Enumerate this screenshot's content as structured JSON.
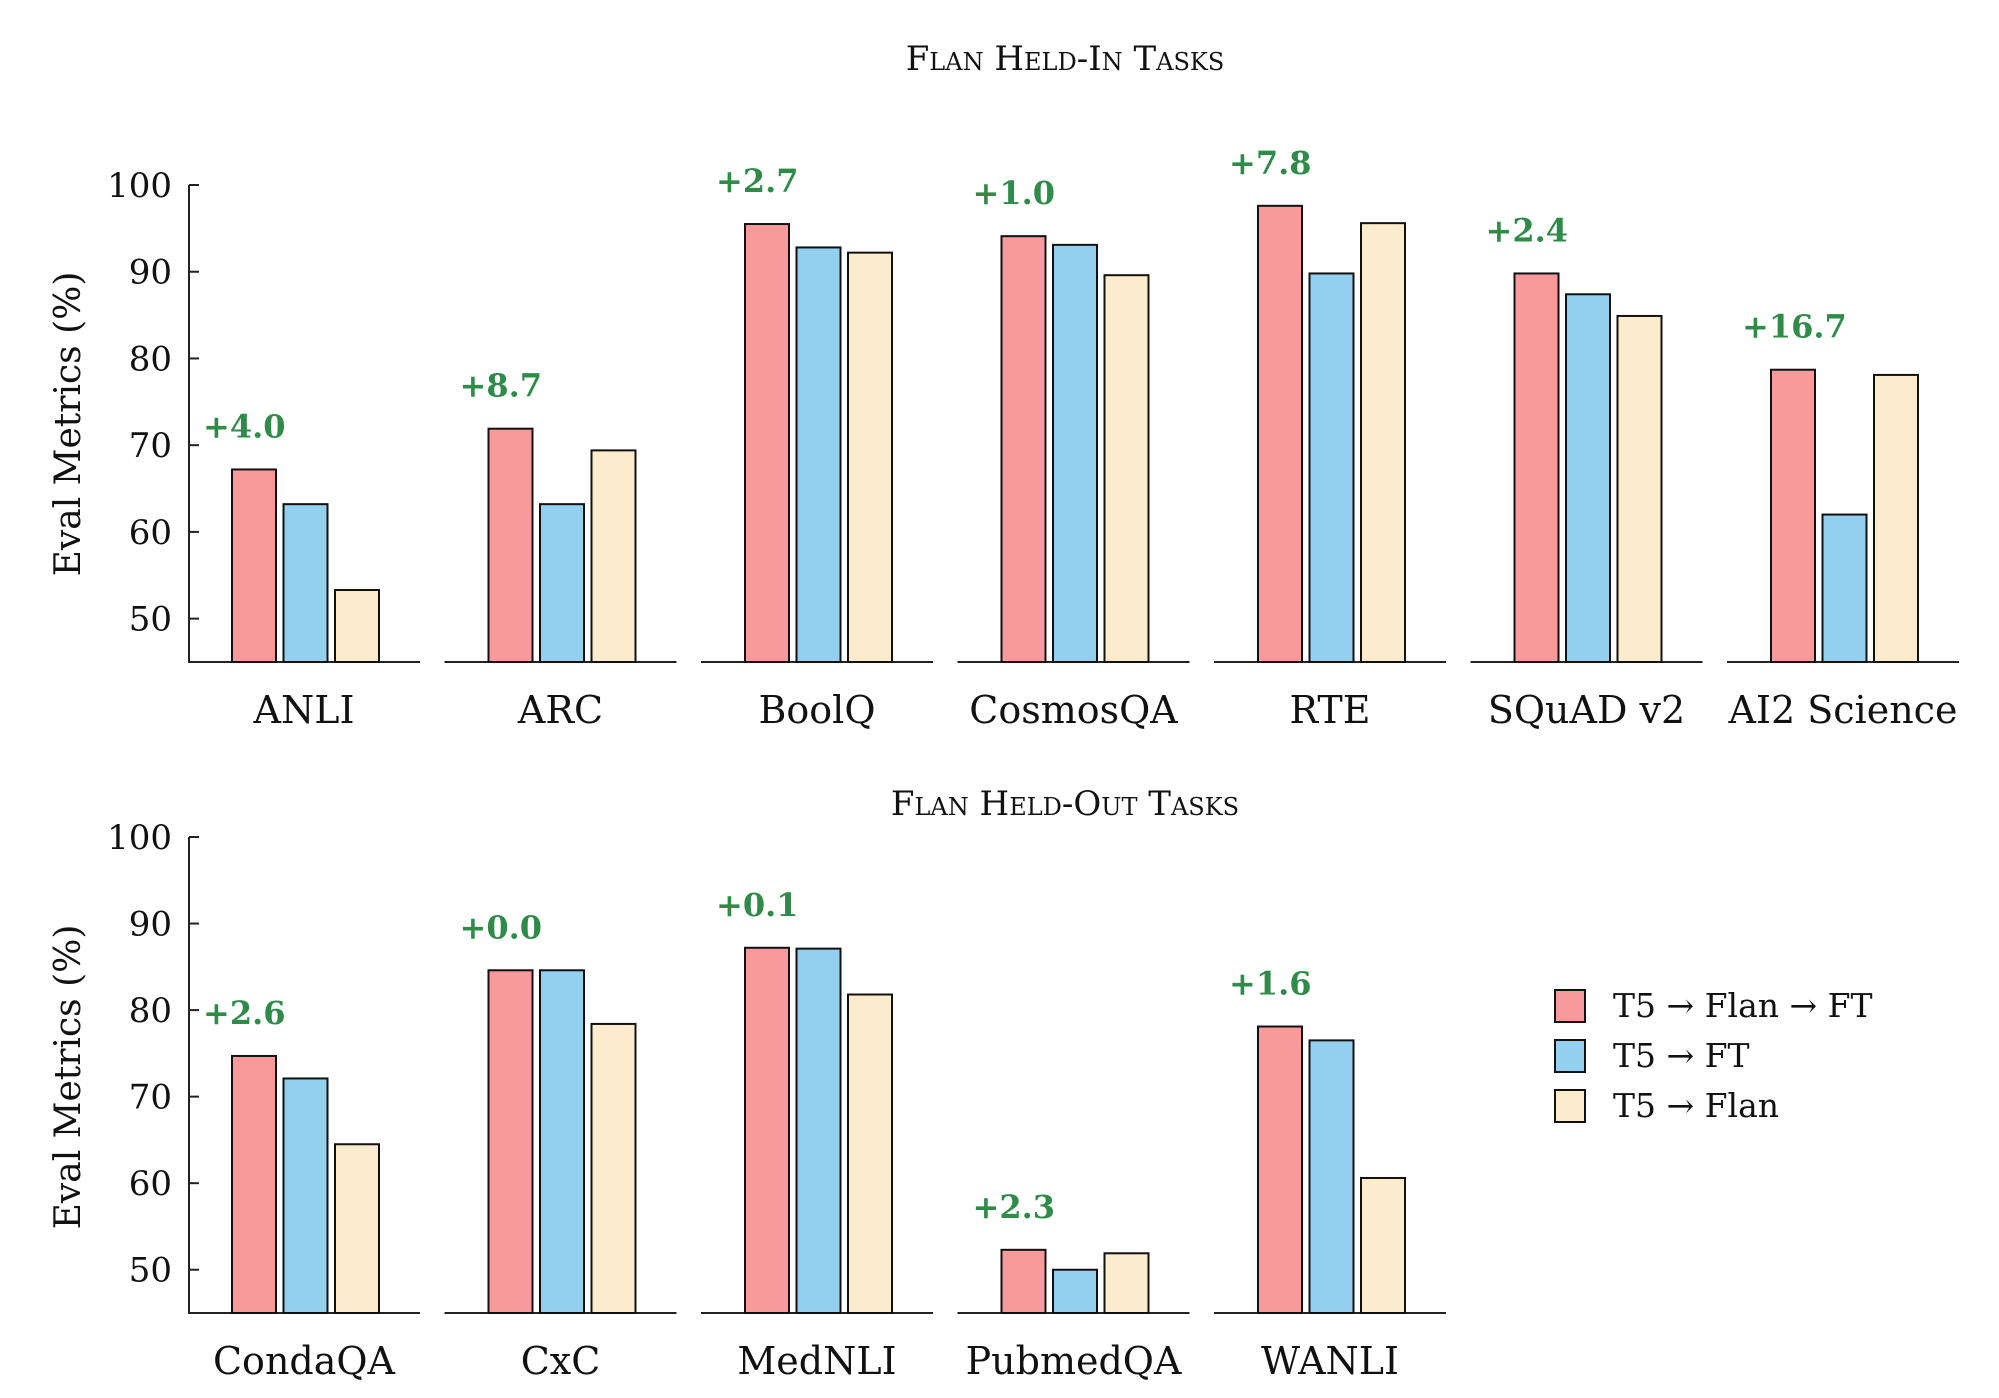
{
  "colors": {
    "flan_ft": "#f89a9c",
    "ft": "#93cfee",
    "flan": "#fcebcd",
    "delta": "#2e8b48"
  },
  "legend": [
    {
      "label": "T5 → Flan → FT",
      "color_key": "flan_ft"
    },
    {
      "label": "T5 → FT",
      "color_key": "ft"
    },
    {
      "label": "T5 → Flan",
      "color_key": "flan"
    }
  ],
  "chart_data": [
    {
      "type": "bar",
      "title": "Flan Held-In Tasks",
      "ylabel": "Eval Metrics (%)",
      "ylim": [
        45,
        100
      ],
      "yticks": [
        50,
        60,
        70,
        80,
        90,
        100
      ],
      "categories": [
        "ANLI",
        "ARC",
        "BoolQ",
        "CosmosQA",
        "RTE",
        "SQuAD v2",
        "AI2 Science"
      ],
      "deltas": [
        "+4.0",
        "+8.7",
        "+2.7",
        "+1.0",
        "+7.8",
        "+2.4",
        "+16.7"
      ],
      "series": [
        {
          "name": "T5 → Flan → FT",
          "values": [
            67.2,
            71.9,
            95.5,
            94.1,
            97.6,
            89.8,
            78.7
          ]
        },
        {
          "name": "T5 → FT",
          "values": [
            63.2,
            63.2,
            92.8,
            93.1,
            89.8,
            87.4,
            62.0
          ]
        },
        {
          "name": "T5 → Flan",
          "values": [
            53.3,
            69.4,
            92.2,
            89.6,
            95.6,
            84.9,
            78.1
          ]
        }
      ]
    },
    {
      "type": "bar",
      "title": "Flan Held-Out Tasks",
      "ylabel": "Eval Metrics (%)",
      "ylim": [
        45,
        100
      ],
      "yticks": [
        50,
        60,
        70,
        80,
        90,
        100
      ],
      "categories": [
        "CondaQA",
        "CxC",
        "MedNLI",
        "PubmedQA",
        "WANLI"
      ],
      "deltas": [
        "+2.6",
        "+0.0",
        "+0.1",
        "+2.3",
        "+1.6"
      ],
      "series": [
        {
          "name": "T5 → Flan → FT",
          "values": [
            74.7,
            84.6,
            87.2,
            52.3,
            78.1
          ]
        },
        {
          "name": "T5 → FT",
          "values": [
            72.1,
            84.6,
            87.1,
            50.0,
            76.5
          ]
        },
        {
          "name": "T5 → Flan",
          "values": [
            64.5,
            78.4,
            81.8,
            51.9,
            60.6
          ]
        }
      ]
    }
  ]
}
